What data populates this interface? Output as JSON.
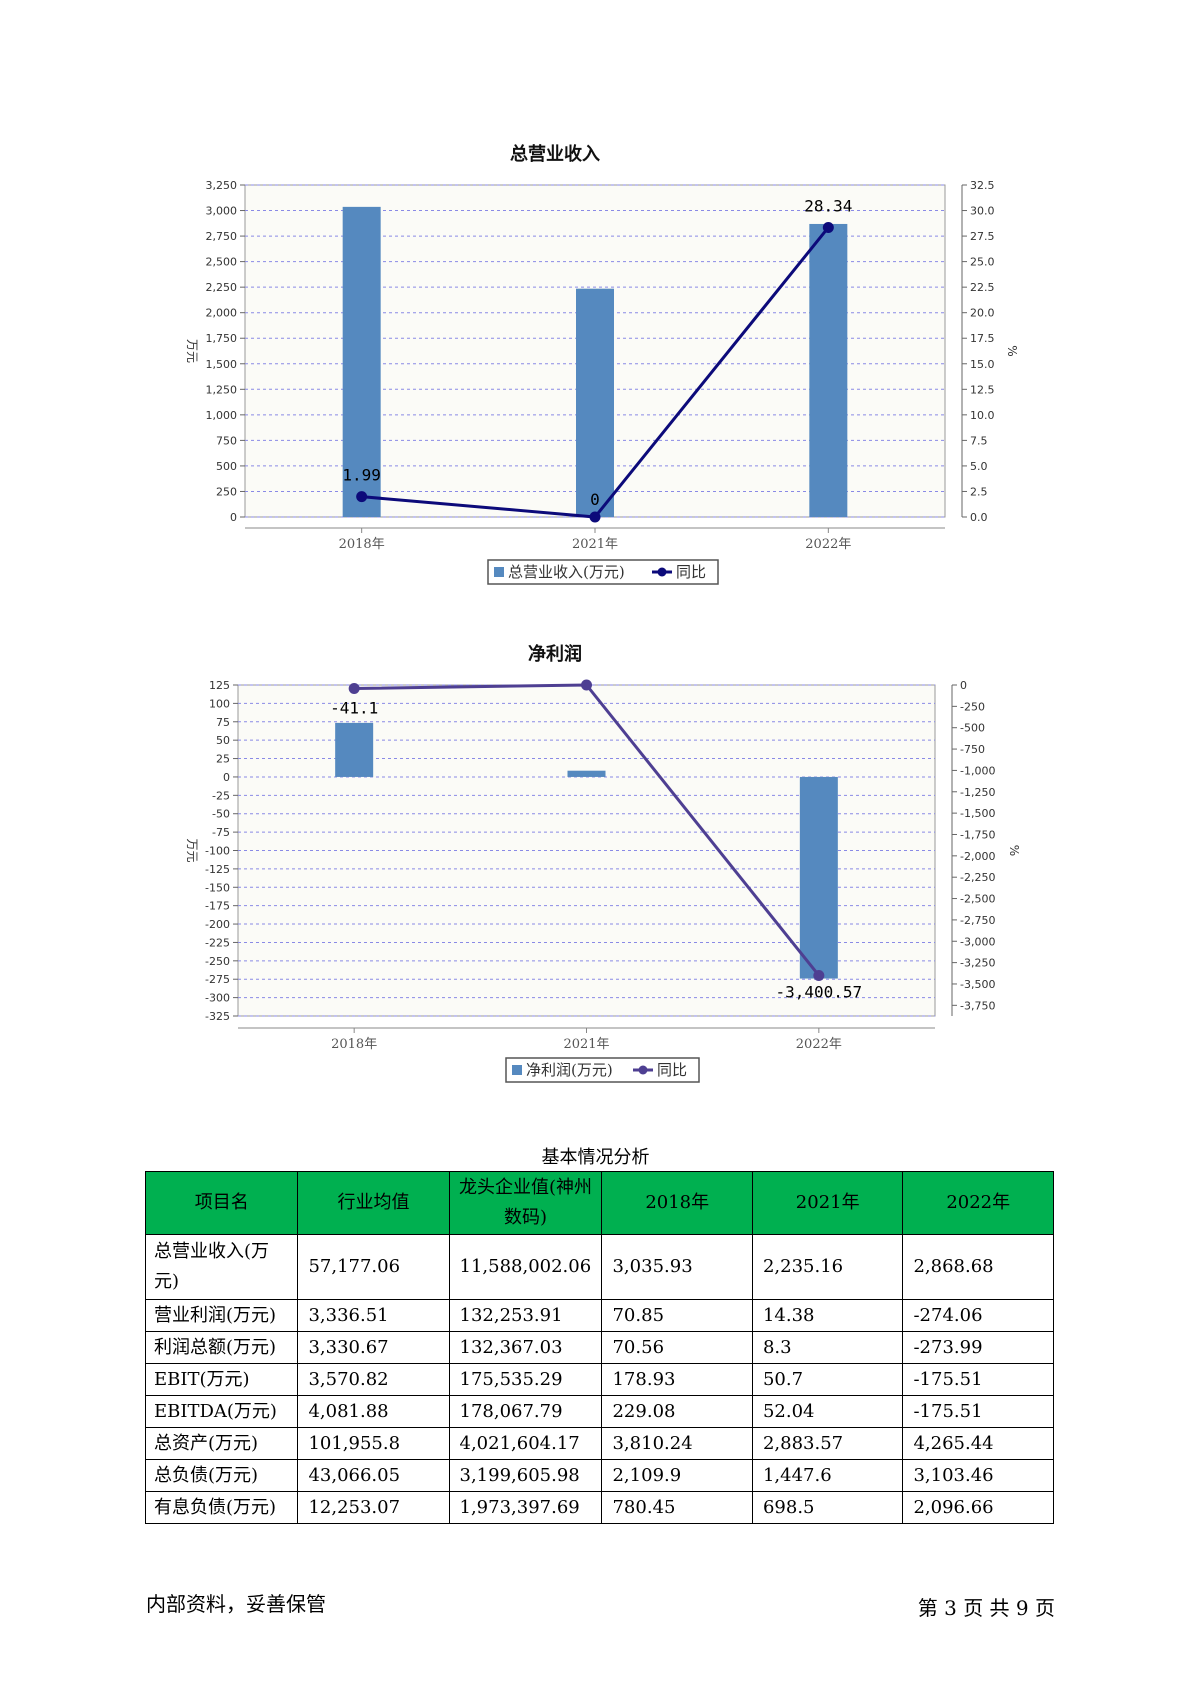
{
  "chart_data": [
    {
      "type": "bar",
      "title": "总营业收入",
      "categories": [
        "2018年",
        "2021年",
        "2022年"
      ],
      "series": [
        {
          "name": "总营业收入(万元)",
          "type": "bar",
          "axis": "left",
          "values": [
            3035.93,
            2235.16,
            2868.68
          ]
        },
        {
          "name": "同比",
          "type": "line",
          "axis": "right",
          "values": [
            1.99,
            0,
            28.34
          ],
          "labels": [
            "1.99",
            "0",
            "28.34"
          ]
        }
      ],
      "ylabel": "万元",
      "y2label": "%",
      "ylim": [
        0,
        3250
      ],
      "y2lim": [
        0,
        32.5
      ],
      "yticks": [
        "0",
        "250",
        "500",
        "750",
        "1,000",
        "1,250",
        "1,500",
        "1,750",
        "2,000",
        "2,250",
        "2,500",
        "2,750",
        "3,000",
        "3,250"
      ],
      "y2ticks": [
        "0.0",
        "2.5",
        "5.0",
        "7.5",
        "10.0",
        "12.5",
        "15.0",
        "17.5",
        "20.0",
        "22.5",
        "25.0",
        "27.5",
        "30.0",
        "32.5"
      ],
      "grid": true,
      "legend": "bottom-center",
      "colors": {
        "bar": "#5589bf",
        "line": "#0c0a7a"
      }
    },
    {
      "type": "bar",
      "title": "净利润",
      "categories": [
        "2018年",
        "2021年",
        "2022年"
      ],
      "series": [
        {
          "name": "净利润(万元)",
          "type": "bar",
          "axis": "left",
          "values": [
            73.5,
            8.5,
            -274.06
          ]
        },
        {
          "name": "同比",
          "type": "line",
          "axis": "right",
          "values": [
            -41.1,
            0,
            -3400.57
          ],
          "labels": [
            "-41.1",
            "",
            "-3,400.57"
          ]
        }
      ],
      "ylabel": "万元",
      "y2label": "%",
      "ylim": [
        -325,
        125
      ],
      "y2lim": [
        -3875,
        0
      ],
      "yticks": [
        "125",
        "100",
        "75",
        "50",
        "25",
        "0",
        "-25",
        "-50",
        "-75",
        "-100",
        "-125",
        "-150",
        "-175",
        "-200",
        "-225",
        "-250",
        "-275",
        "-300",
        "-325"
      ],
      "y2ticks": [
        "0",
        "-250",
        "-500",
        "-750",
        "-1,000",
        "-1,250",
        "-1,500",
        "-1,750",
        "-2,000",
        "-2,250",
        "-2,500",
        "-2,750",
        "-3,000",
        "-3,250",
        "-3,500",
        "-3,750"
      ],
      "grid": true,
      "legend": "bottom-center",
      "colors": {
        "bar": "#5589bf",
        "line": "#4e3f92"
      }
    }
  ],
  "table": {
    "title": "基本情况分析",
    "headers": [
      "项目名",
      "行业均值",
      "龙头企业值(神州数码)",
      "2018年",
      "2021年",
      "2022年"
    ],
    "rows": [
      [
        "总营业收入(万元)",
        "57,177.06",
        "11,588,002.06",
        "3,035.93",
        "2,235.16",
        "2,868.68"
      ],
      [
        "营业利润(万元)",
        "3,336.51",
        "132,253.91",
        "70.85",
        "14.38",
        "-274.06"
      ],
      [
        "利润总额(万元)",
        "3,330.67",
        "132,367.03",
        "70.56",
        "8.3",
        "-273.99"
      ],
      [
        "EBIT(万元)",
        "3,570.82",
        "175,535.29",
        "178.93",
        "50.7",
        "-175.51"
      ],
      [
        "EBITDA(万元)",
        "4,081.88",
        "178,067.79",
        "229.08",
        "52.04",
        "-175.51"
      ],
      [
        "总资产(万元)",
        "101,955.8",
        "4,021,604.17",
        "3,810.24",
        "2,883.57",
        "4,265.44"
      ],
      [
        "总负债(万元)",
        "43,066.05",
        "3,199,605.98",
        "2,109.9",
        "1,447.6",
        "3,103.46"
      ],
      [
        "有息负债(万元)",
        "12,253.07",
        "1,973,397.69",
        "780.45",
        "698.5",
        "2,096.66"
      ]
    ]
  },
  "footer": {
    "left": "内部资料，妥善保管",
    "right": "第 3 页   共 9 页"
  }
}
